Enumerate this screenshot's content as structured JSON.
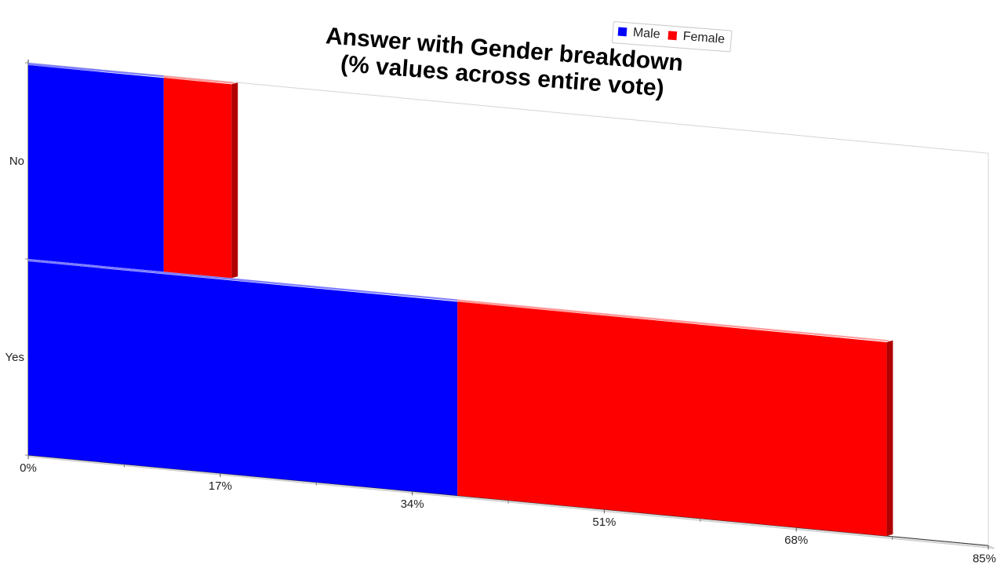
{
  "chart_data": {
    "type": "bar",
    "orientation": "horizontal",
    "stacked": true,
    "title": [
      "Answer with Gender breakdown",
      "(% values across entire vote)"
    ],
    "categories": [
      "No",
      "Yes"
    ],
    "series": [
      {
        "name": "Male",
        "values": [
          12,
          38
        ],
        "color": "#0000ff"
      },
      {
        "name": "Female",
        "values": [
          6,
          38
        ],
        "color": "#ff0000"
      }
    ],
    "xlim": [
      0,
      85
    ],
    "xticks": [
      "0%",
      "17%",
      "34%",
      "51%",
      "68%",
      "85%"
    ],
    "grid": false,
    "legend": "top-right",
    "style": "3d"
  }
}
